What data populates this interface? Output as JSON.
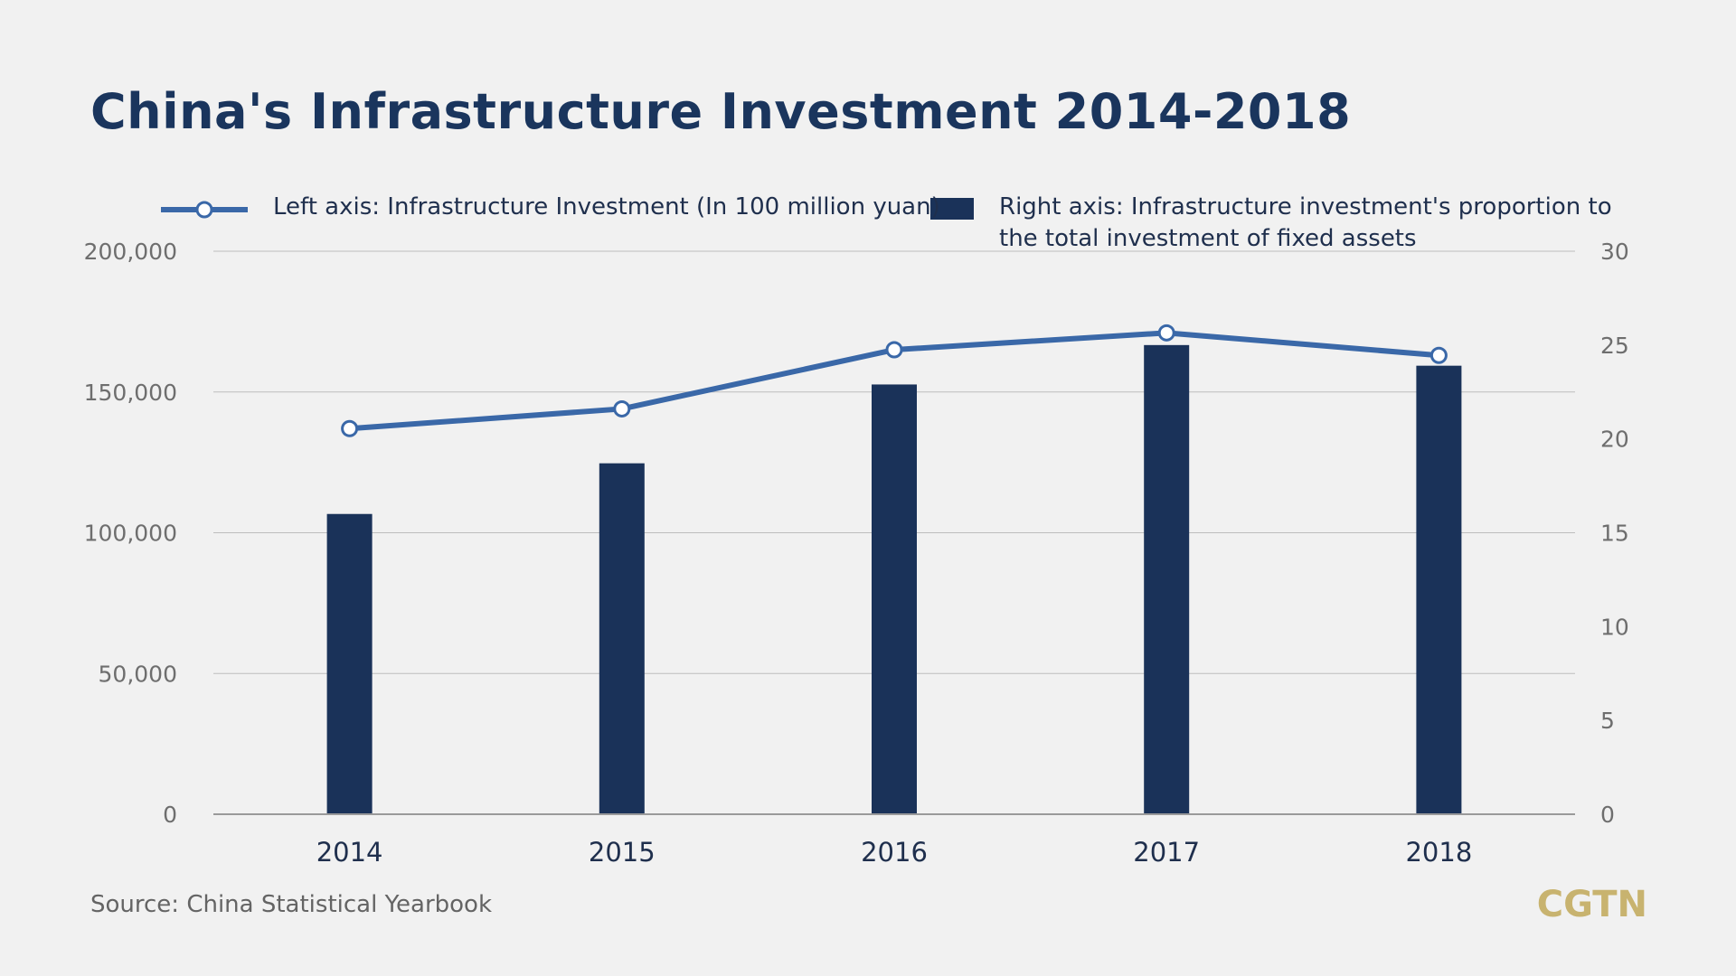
{
  "title": "China's Infrastructure Investment 2014-2018",
  "legend": {
    "line_label": "Left axis: Infrastructure Investment (In 100 million yuan)",
    "bar_label": "Right axis: Infrastructure investment's proportion to the total investment of fixed assets"
  },
  "source": "Source: China Statistical Yearbook",
  "logo": "CGTN",
  "colors": {
    "background": "#f1f1f1",
    "title": "#1a355d",
    "bar": "#1a3259",
    "line": "#3a68a8",
    "grid": "#bdbdbd",
    "logo": "#c8b36f"
  },
  "chart_data": {
    "type": "bar+line",
    "categories": [
      "2014",
      "2015",
      "2016",
      "2017",
      "2018"
    ],
    "series": [
      {
        "name": "Left axis: Infrastructure Investment (In 100 million yuan)",
        "type": "line",
        "axis": "left",
        "values": [
          137000,
          144000,
          165000,
          171000,
          163000
        ]
      },
      {
        "name": "Right axis: Infrastructure investment's proportion to the total investment of fixed assets",
        "type": "bar",
        "axis": "right",
        "values": [
          16.0,
          18.7,
          22.9,
          25.0,
          23.9
        ]
      }
    ],
    "left_axis": {
      "ylim": [
        0,
        200000
      ],
      "ticks": [
        "0",
        "50,000",
        "100,000",
        "150,000",
        "200,000"
      ],
      "tick_values": [
        0,
        50000,
        100000,
        150000,
        200000
      ]
    },
    "right_axis": {
      "ylim": [
        0,
        30
      ],
      "ticks": [
        "0",
        "5",
        "10",
        "15",
        "20",
        "25",
        "30"
      ],
      "tick_values": [
        0,
        5,
        10,
        15,
        20,
        25,
        30
      ]
    },
    "grid": true,
    "legend_position": "top"
  }
}
